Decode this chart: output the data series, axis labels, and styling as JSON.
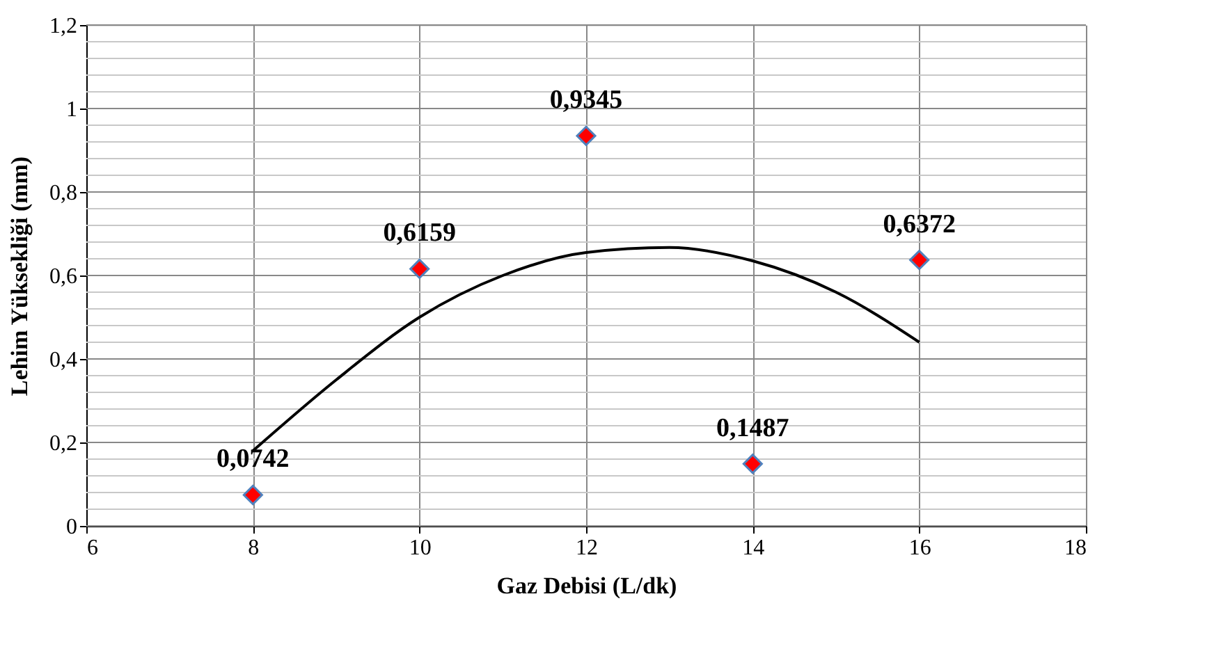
{
  "chart_data": {
    "type": "scatter",
    "xlabel": "Gaz Debisi (L/dk)",
    "ylabel": "Lehim Yüksekliği (mm)",
    "xlim": [
      6,
      18
    ],
    "xticks": [
      6,
      8,
      10,
      12,
      14,
      16,
      18
    ],
    "ylim": [
      0,
      1.2
    ],
    "yticks": [
      {
        "value": 0,
        "label": "0"
      },
      {
        "value": 0.04,
        "label": null
      },
      {
        "value": 0.08,
        "label": null
      },
      {
        "value": 0.12,
        "label": null
      },
      {
        "value": 0.16,
        "label": null
      },
      {
        "value": 0.2,
        "label": "0,2"
      },
      {
        "value": 0.24,
        "label": null
      },
      {
        "value": 0.28,
        "label": null
      },
      {
        "value": 0.32,
        "label": null
      },
      {
        "value": 0.36,
        "label": null
      },
      {
        "value": 0.4,
        "label": "0,4"
      },
      {
        "value": 0.44,
        "label": null
      },
      {
        "value": 0.48,
        "label": null
      },
      {
        "value": 0.52,
        "label": null
      },
      {
        "value": 0.56,
        "label": null
      },
      {
        "value": 0.6,
        "label": "0,6"
      },
      {
        "value": 0.64,
        "label": null
      },
      {
        "value": 0.68,
        "label": null
      },
      {
        "value": 0.72,
        "label": null
      },
      {
        "value": 0.76,
        "label": null
      },
      {
        "value": 0.8,
        "label": "0,8"
      },
      {
        "value": 0.84,
        "label": null
      },
      {
        "value": 0.88,
        "label": null
      },
      {
        "value": 0.92,
        "label": null
      },
      {
        "value": 0.96,
        "label": null
      },
      {
        "value": 1,
        "label": "1"
      },
      {
        "value": 1.04,
        "label": null
      },
      {
        "value": 1.08,
        "label": null
      },
      {
        "value": 1.12,
        "label": null
      },
      {
        "value": 1.16,
        "label": null
      },
      {
        "value": 1.2,
        "label": "1,2"
      }
    ],
    "grid": true,
    "series": [
      {
        "type": "scatter",
        "marker": "diamond",
        "color": "#ff0000",
        "x": [
          8,
          10,
          12,
          14,
          16
        ],
        "values": [
          0.0742,
          0.6159,
          0.9345,
          0.1487,
          0.6372
        ],
        "value_labels": [
          "0,0742",
          "0,6159",
          "0,9345",
          "0,1487",
          "0,6372"
        ]
      },
      {
        "type": "line",
        "marker": "none",
        "line_style": "solid",
        "color": "#000000",
        "x": [
          8,
          9,
          10,
          11,
          12,
          13,
          14,
          15,
          16
        ],
        "values": [
          0.18,
          0.35,
          0.5,
          0.6,
          0.655,
          0.667,
          0.635,
          0.56,
          0.44
        ]
      }
    ]
  }
}
